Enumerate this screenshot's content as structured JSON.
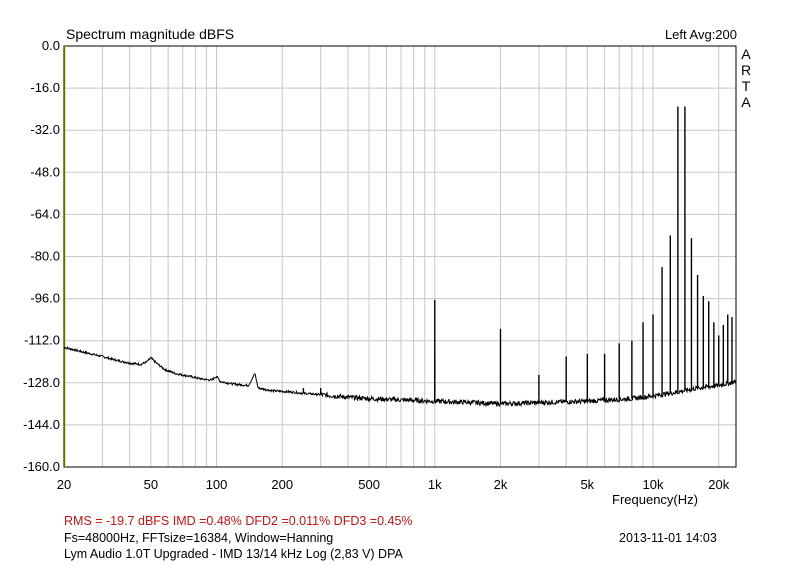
{
  "header": {
    "title": "Spectrum magnitude dBFS",
    "channel_avg": "Left  Avg:200",
    "watermark": [
      "A",
      "R",
      "T",
      "A"
    ]
  },
  "footer": {
    "stats": "RMS =  -19.7 dBFS   IMD =0.48%  DFD2 =0.011%  DFD3 =0.45%",
    "params": "Fs=48000Hz, FFTsize=16384, Window=Hanning",
    "datetime": "2013-11-01  14:03",
    "description": "Lym Audio 1.0T Upgraded - IMD 13/14 kHz Log (2,83 V)     DPA"
  },
  "colors": {
    "background": "#ffffff",
    "grid": "#c8c8c8",
    "frame": "#000000",
    "trace": "#000000",
    "stats_text": "#cc1111",
    "left_axis_line": "#d4d400"
  },
  "chart_data": {
    "type": "line",
    "title": "Spectrum magnitude dBFS",
    "xlabel": "Frequency(Hz)",
    "ylabel": "",
    "xscale": "log",
    "xlim": [
      20,
      24000
    ],
    "ylim": [
      -160,
      0
    ],
    "grid": true,
    "x_ticks": [
      20,
      50,
      100,
      200,
      500,
      1000,
      2000,
      5000,
      10000,
      20000
    ],
    "x_tick_labels": [
      "20",
      "50",
      "100",
      "200",
      "500",
      "1k",
      "2k",
      "5k",
      "10k",
      "20k"
    ],
    "y_ticks": [
      0,
      -16,
      -32,
      -48,
      -64,
      -80,
      -96,
      -112,
      -128,
      -144,
      -160
    ],
    "y_tick_labels": [
      "0.0",
      "-16.0",
      "-32.0",
      "-48.0",
      "-64.0",
      "-80.0",
      "-96.0",
      "-112.0",
      "-128.0",
      "-144.0",
      "-160.0"
    ],
    "series": [
      {
        "noise_floor": [
          [
            20,
            -114.5
          ],
          [
            25,
            -116.5
          ],
          [
            30,
            -118
          ],
          [
            35,
            -119.5
          ],
          [
            40,
            -120.5
          ],
          [
            45,
            -121
          ],
          [
            48,
            -120
          ],
          [
            50,
            -118.5
          ],
          [
            53,
            -120.5
          ],
          [
            58,
            -123
          ],
          [
            65,
            -124.5
          ],
          [
            75,
            -125.5
          ],
          [
            85,
            -126.5
          ],
          [
            95,
            -127
          ],
          [
            100,
            -125.5
          ],
          [
            104,
            -127.5
          ],
          [
            120,
            -128.5
          ],
          [
            140,
            -129
          ],
          [
            150,
            -124.5
          ],
          [
            155,
            -130
          ],
          [
            180,
            -131
          ],
          [
            220,
            -131.5
          ],
          [
            250,
            -132
          ],
          [
            300,
            -132.5
          ],
          [
            400,
            -133.5
          ],
          [
            500,
            -134
          ],
          [
            700,
            -134.5
          ],
          [
            1000,
            -135
          ],
          [
            1500,
            -135.5
          ],
          [
            2000,
            -136
          ],
          [
            3000,
            -135.5
          ],
          [
            5000,
            -135
          ],
          [
            8000,
            -134
          ],
          [
            10000,
            -133
          ],
          [
            13000,
            -131.5
          ],
          [
            16000,
            -130
          ],
          [
            20000,
            -129
          ],
          [
            24000,
            -127.5
          ]
        ],
        "spurs": [
          [
            50,
            -118.5
          ],
          [
            100,
            -125.5
          ],
          [
            150,
            -124.5
          ],
          [
            250,
            -130
          ],
          [
            300,
            -130
          ],
          [
            1000,
            -96.5
          ],
          [
            1000,
            -117
          ],
          [
            2000,
            -107.5
          ],
          [
            3000,
            -125
          ],
          [
            4000,
            -118
          ],
          [
            5000,
            -117
          ],
          [
            6000,
            -117
          ],
          [
            7000,
            -113
          ],
          [
            8000,
            -112
          ],
          [
            9000,
            -105
          ],
          [
            10000,
            -102
          ],
          [
            11000,
            -84
          ],
          [
            12000,
            -72
          ],
          [
            13000,
            -23
          ],
          [
            14000,
            -23
          ],
          [
            15000,
            -73
          ],
          [
            16000,
            -87
          ],
          [
            17000,
            -95
          ],
          [
            18000,
            -97
          ],
          [
            19000,
            -105
          ],
          [
            20000,
            -110
          ],
          [
            21000,
            -106
          ],
          [
            22000,
            -102
          ],
          [
            23000,
            -103
          ]
        ]
      }
    ]
  }
}
